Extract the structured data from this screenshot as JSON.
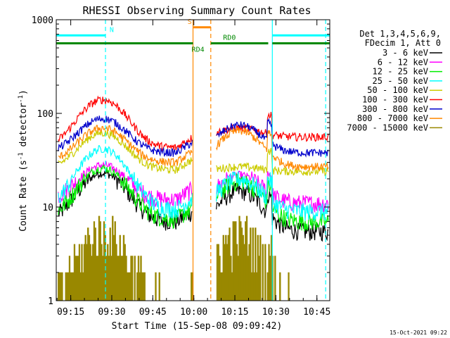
{
  "chart_data": {
    "type": "line",
    "title": "RHESSI Observing Summary Count Rates",
    "xlabel": "Start Time (15-Sep-08 09:09:42)",
    "ylabel_main": "Count Rate (s",
    "ylabel_sup1": "-1",
    "ylabel_mid": " detector",
    "ylabel_sup2": "-1",
    "ylabel_end": ")",
    "yscale": "log",
    "ylim": [
      1,
      1000
    ],
    "xlim_minutes": [
      0,
      100
    ],
    "x_ticks": [
      {
        "min": 5.3,
        "label": "09:15"
      },
      {
        "min": 20.3,
        "label": "09:30"
      },
      {
        "min": 35.3,
        "label": "09:45"
      },
      {
        "min": 50.3,
        "label": "10:00"
      },
      {
        "min": 65.3,
        "label": "10:15"
      },
      {
        "min": 80.3,
        "label": "10:30"
      },
      {
        "min": 95.3,
        "label": "10:45"
      }
    ],
    "y_ticks": [
      {
        "value": 1,
        "label": "1"
      },
      {
        "value": 10,
        "label": "10"
      },
      {
        "value": 100,
        "label": "100"
      },
      {
        "value": 1000,
        "label": "1000"
      }
    ],
    "legend_header": [
      "Det 1,3,4,5,6,9,",
      "FDecim 1, Att 0"
    ],
    "legend_position": "right",
    "series": [
      {
        "name": "3 - 6 keV",
        "color": "#000000",
        "p1": [
          7,
          23
        ],
        "p2": [
          5.5,
          15,
          5.5
        ]
      },
      {
        "name": "6 - 12 keV",
        "color": "#ff00ff",
        "p1": [
          12,
          28
        ],
        "p2": [
          11,
          22,
          11
        ]
      },
      {
        "name": "12 - 25 keV",
        "color": "#00ee00",
        "p1": [
          7.5,
          26
        ],
        "p2": [
          7,
          19,
          7
        ]
      },
      {
        "name": "25 - 50 keV",
        "color": "#00ffff",
        "p1": [
          9.5,
          42
        ],
        "p2": [
          9,
          20,
          9
        ]
      },
      {
        "name": "50 - 100 keV",
        "color": "#cccc00",
        "p1": [
          25,
          62
        ],
        "p2": [
          24,
          27,
          24
        ]
      },
      {
        "name": "100 - 300 keV",
        "color": "#ff0000",
        "p1": [
          43,
          140
        ],
        "p2": [
          56,
          70,
          56
        ]
      },
      {
        "name": "300 - 800 keV",
        "color": "#0000cc",
        "p1": [
          38,
          88
        ],
        "p2": [
          38,
          75,
          38
        ]
      },
      {
        "name": "800 - 7000 keV",
        "color": "#ff8800",
        "p1": [
          30,
          70
        ],
        "p2": [
          27,
          65,
          27
        ]
      },
      {
        "name": "7000 - 15000 keV",
        "color": "#998800",
        "p1": [
          1,
          6
        ],
        "p2": [
          1,
          6,
          1
        ]
      }
    ],
    "data_gap_minutes": [
      50.0,
      58.5
    ],
    "vlines": [
      {
        "min": 18.0,
        "color": "#00ffff",
        "style": "dashed"
      },
      {
        "min": 50.0,
        "color": "#ff8800",
        "style": "solid"
      },
      {
        "min": 56.5,
        "color": "#ff8800",
        "style": "dashed"
      },
      {
        "min": 79.0,
        "color": "#00ffff",
        "style": "solid"
      },
      {
        "min": 98.5,
        "color": "#00ffff",
        "style": "dashed"
      }
    ],
    "flag_bars": [
      {
        "label": "N",
        "color": "#00ffff",
        "value": 680,
        "segments": [
          [
            0,
            18
          ],
          [
            79,
            100
          ]
        ],
        "label_at": 19.5,
        "label_side": "above"
      },
      {
        "label": "S",
        "color": "#ff8800",
        "value": 830,
        "segments": [
          [
            50,
            56.5
          ]
        ],
        "label_at": 48.0,
        "label_side": "above"
      },
      {
        "label": "RD4",
        "color": "#008800",
        "value": 560,
        "segments": [
          [
            0,
            50
          ],
          [
            56.5,
            77.5
          ],
          [
            79,
            100
          ]
        ],
        "label_at": 49.5,
        "label_side": "below"
      },
      {
        "label": "RD0",
        "color": "#008800",
        "value": 560,
        "segments": [],
        "label_at": 61.0,
        "label_side": "above"
      }
    ],
    "timestamp": "15-Oct-2021 09:22"
  }
}
